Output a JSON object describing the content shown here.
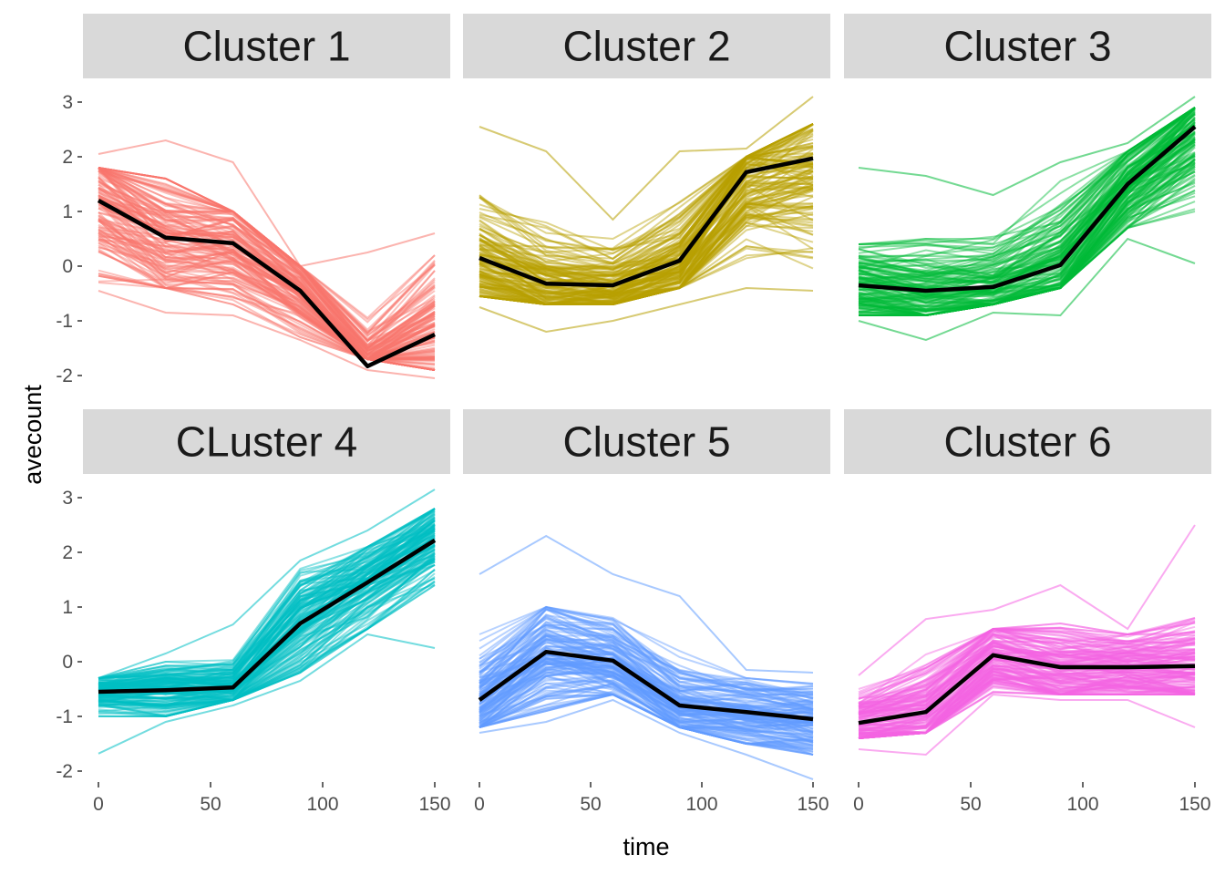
{
  "chart_data": {
    "type": "line",
    "layout": "facet-grid-2x3",
    "xlabel": "time",
    "ylabel": "avecount",
    "xlim": [
      0,
      150
    ],
    "ylim": [
      -2.2,
      3.2
    ],
    "x_ticks": [
      0,
      50,
      100,
      150
    ],
    "y_ticks": [
      -2,
      -1,
      0,
      1,
      2,
      3
    ],
    "x": [
      0,
      30,
      60,
      90,
      120,
      150
    ],
    "grid": false,
    "mean_line_color": "#000000",
    "panels": [
      {
        "title": "Cluster 1",
        "color": "#F8766D",
        "mean": [
          1.2,
          0.52,
          0.42,
          -0.45,
          -1.83,
          -1.25
        ],
        "band_lower": [
          -0.3,
          -0.4,
          -0.7,
          -1.3,
          -1.7,
          -1.9
        ],
        "band_upper": [
          1.8,
          1.6,
          1.0,
          0.0,
          -0.5,
          0.2
        ],
        "outlier_max": [
          2.05,
          2.3,
          1.9,
          0.0,
          0.25,
          0.6
        ],
        "outlier_min": [
          -0.45,
          -0.85,
          -0.9,
          -1.35,
          -1.9,
          -2.05
        ]
      },
      {
        "title": "Cluster 2",
        "color": "#B79F00",
        "mean": [
          0.15,
          -0.32,
          -0.35,
          0.1,
          1.72,
          1.97
        ],
        "band_lower": [
          -0.55,
          -0.7,
          -0.7,
          -0.4,
          -0.2,
          -0.3
        ],
        "band_upper": [
          1.3,
          0.9,
          0.5,
          1.3,
          2.0,
          2.6
        ],
        "outlier_max": [
          2.55,
          2.1,
          0.85,
          2.1,
          2.15,
          3.1
        ],
        "outlier_min": [
          -0.75,
          -1.2,
          -1.0,
          -0.7,
          -0.4,
          -0.45
        ]
      },
      {
        "title": "Cluster 3",
        "color": "#00BA38",
        "mean": [
          -0.35,
          -0.45,
          -0.38,
          0.02,
          1.5,
          2.55
        ],
        "band_lower": [
          -0.9,
          -0.9,
          -0.7,
          -0.4,
          0.7,
          1.0
        ],
        "band_upper": [
          0.4,
          0.5,
          0.6,
          1.6,
          2.1,
          2.9
        ],
        "outlier_max": [
          1.8,
          1.65,
          1.3,
          1.9,
          2.25,
          3.1
        ],
        "outlier_min": [
          -1.0,
          -1.35,
          -0.85,
          -0.9,
          0.5,
          0.05
        ]
      },
      {
        "title": "CLuster 4",
        "color": "#00BFC4",
        "mean": [
          -0.55,
          -0.52,
          -0.47,
          0.7,
          1.45,
          2.22
        ],
        "band_lower": [
          -1.0,
          -1.0,
          -0.7,
          -0.2,
          0.6,
          1.4
        ],
        "band_upper": [
          -0.3,
          0.0,
          0.2,
          1.7,
          2.1,
          2.8
        ],
        "outlier_max": [
          -0.3,
          0.15,
          0.68,
          1.85,
          2.4,
          3.15
        ],
        "outlier_min": [
          -1.68,
          -1.1,
          -0.8,
          -0.35,
          0.5,
          0.25
        ]
      },
      {
        "title": "Cluster 5",
        "color": "#619CFF",
        "mean": [
          -0.7,
          0.18,
          0.02,
          -0.8,
          -0.92,
          -1.05
        ],
        "band_lower": [
          -1.2,
          -0.9,
          -0.6,
          -1.2,
          -1.5,
          -1.7
        ],
        "band_upper": [
          0.5,
          1.0,
          0.8,
          0.2,
          -0.3,
          -0.4
        ],
        "outlier_max": [
          1.6,
          2.3,
          1.6,
          1.2,
          -0.15,
          -0.2
        ],
        "outlier_min": [
          -1.3,
          -1.1,
          -0.7,
          -1.3,
          -1.7,
          -2.15
        ]
      },
      {
        "title": "Cluster 6",
        "color": "#F564E3",
        "mean": [
          -1.12,
          -0.92,
          0.12,
          -0.1,
          -0.1,
          -0.08
        ],
        "band_lower": [
          -1.4,
          -1.3,
          -0.6,
          -0.6,
          -0.6,
          -0.6
        ],
        "band_upper": [
          -0.5,
          0.2,
          0.6,
          0.7,
          0.5,
          0.8
        ],
        "outlier_max": [
          -0.25,
          0.78,
          0.95,
          1.4,
          0.6,
          2.5
        ],
        "outlier_min": [
          -1.6,
          -1.7,
          -0.6,
          -0.7,
          -0.7,
          -1.2
        ]
      }
    ]
  }
}
